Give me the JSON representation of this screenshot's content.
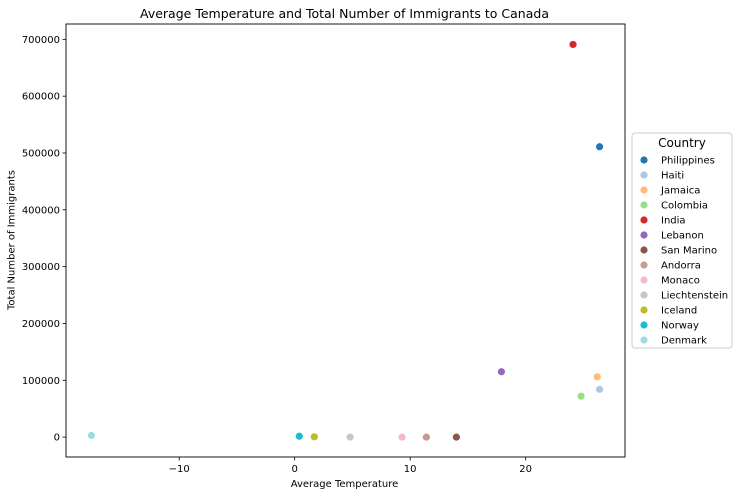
{
  "chart_data": {
    "type": "scatter",
    "title": "Average Temperature and Total Number of Immigrants to Canada",
    "xlabel": "Average Temperature",
    "ylabel": "Total Number of Immigrants",
    "xlim": [
      -19.8,
      28.6
    ],
    "ylim": [
      -35000,
      727000
    ],
    "xticks": [
      -10,
      0,
      10,
      20
    ],
    "yticks": [
      0,
      100000,
      200000,
      300000,
      400000,
      500000,
      600000,
      700000
    ],
    "grid": false,
    "legend": {
      "title": "Country",
      "placement": "right"
    },
    "series": [
      {
        "name": "Philippines",
        "color": "#1f77b4",
        "x": 26.4,
        "y": 511000
      },
      {
        "name": "Haiti",
        "color": "#aec7e8",
        "x": 26.4,
        "y": 84000
      },
      {
        "name": "Jamaica",
        "color": "#ffbb78",
        "x": 26.2,
        "y": 106000
      },
      {
        "name": "Colombia",
        "color": "#98df8a",
        "x": 24.8,
        "y": 72000
      },
      {
        "name": "India",
        "color": "#d62728",
        "x": 24.1,
        "y": 691000
      },
      {
        "name": "Lebanon",
        "color": "#9467bd",
        "x": 17.9,
        "y": 115000
      },
      {
        "name": "San Marino",
        "color": "#8c564b",
        "x": 14.0,
        "y": 0
      },
      {
        "name": "Andorra",
        "color": "#c49c94",
        "x": 11.4,
        "y": 0
      },
      {
        "name": "Monaco",
        "color": "#f7b6d2",
        "x": 9.3,
        "y": 0
      },
      {
        "name": "Liechtenstein",
        "color": "#c7c7c7",
        "x": 4.8,
        "y": 0
      },
      {
        "name": "Iceland",
        "color": "#bcbd22",
        "x": 1.7,
        "y": 500
      },
      {
        "name": "Norway",
        "color": "#17becf",
        "x": 0.4,
        "y": 1500
      },
      {
        "name": "Denmark",
        "color": "#9edae5",
        "x": -17.6,
        "y": 3000
      }
    ]
  }
}
